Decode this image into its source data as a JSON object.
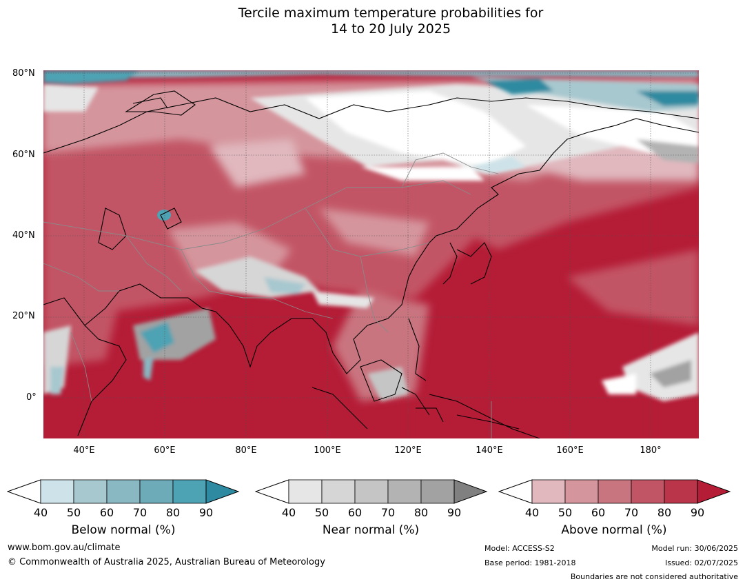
{
  "title_line1": "Tercile maximum temperature probabilities for",
  "title_line2": "14 to 20 July 2025",
  "lat_labels": [
    "80°N",
    "60°N",
    "40°N",
    "20°N",
    "0°"
  ],
  "lon_labels": [
    "40°E",
    "60°E",
    "80°E",
    "100°E",
    "120°E",
    "140°E",
    "160°E",
    "180°"
  ],
  "colorbars": [
    {
      "name": "Below normal (%)",
      "ticks": [
        "40",
        "50",
        "60",
        "70",
        "80",
        "90"
      ],
      "colors": [
        "#cde3e9",
        "#a7c8cf",
        "#89b7c2",
        "#6eabb8",
        "#4da2b3",
        "#2e8aa0"
      ]
    },
    {
      "name": "Near normal (%)",
      "ticks": [
        "40",
        "50",
        "60",
        "70",
        "80",
        "90"
      ],
      "colors": [
        "#e6e6e6",
        "#d6d6d6",
        "#c5c5c5",
        "#b3b3b3",
        "#a2a2a2",
        "#808080"
      ]
    },
    {
      "name": "Above normal (%)",
      "ticks": [
        "40",
        "50",
        "60",
        "70",
        "80",
        "90"
      ],
      "colors": [
        "#e0b8be",
        "#d5959d",
        "#c97580",
        "#c25565",
        "#bb354a",
        "#b51c36"
      ]
    }
  ],
  "footer": {
    "website": "www.bom.gov.au/climate",
    "copyright": "© Commonwealth of Australia 2025, Australian Bureau of Meteorology",
    "model": "Model: ACCESS-S2",
    "base_period": "Base period: 1981-2018",
    "model_run": "Model run: 30/06/2025",
    "issued": "Issued: 02/07/2025",
    "boundaries": "Boundaries are not considered authoritative"
  }
}
